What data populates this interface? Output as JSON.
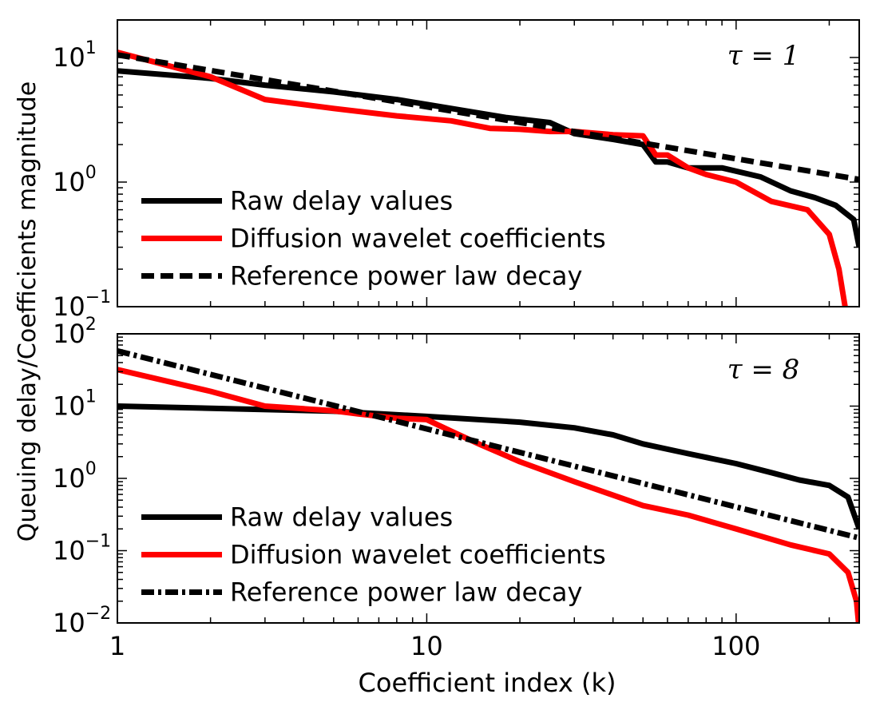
{
  "figure": {
    "ylabel": "Queuing delay/Coefficients magnitude",
    "xlabel": "Coefficient index (k)"
  },
  "chart_data": [
    {
      "type": "line",
      "annotation": "τ = 1",
      "xscale": "log",
      "yscale": "log",
      "xlim": [
        1,
        250
      ],
      "ylim": [
        0.1,
        20
      ],
      "x_ticks": [
        {
          "value": 1,
          "label": "1"
        },
        {
          "value": 10,
          "label": "10"
        },
        {
          "value": 100,
          "label": "100"
        }
      ],
      "y_ticks": [
        {
          "value": 0.1,
          "base": "10",
          "exp": "−1"
        },
        {
          "value": 1,
          "base": "10",
          "exp": "0"
        },
        {
          "value": 10,
          "base": "10",
          "exp": "1"
        }
      ],
      "legend_position": "bottom-left",
      "series": [
        {
          "name": "Raw delay values",
          "color": "#000000",
          "dash": "solid",
          "x": [
            1,
            2,
            3,
            5,
            8,
            12,
            18,
            25,
            30,
            40,
            50,
            55,
            60,
            70,
            90,
            120,
            150,
            180,
            210,
            240,
            250
          ],
          "y": [
            7.8,
            6.8,
            6.0,
            5.3,
            4.6,
            3.9,
            3.3,
            3.0,
            2.45,
            2.2,
            2.0,
            1.45,
            1.45,
            1.3,
            1.3,
            1.1,
            0.85,
            0.75,
            0.65,
            0.5,
            0.3
          ]
        },
        {
          "name": "Diffusion wavelet coefficients",
          "color": "#ff0000",
          "dash": "solid",
          "x": [
            1,
            2,
            3,
            5,
            8,
            12,
            16,
            20,
            25,
            30,
            40,
            50,
            55,
            60,
            70,
            80,
            100,
            130,
            170,
            200,
            215,
            225
          ],
          "y": [
            11,
            7,
            4.6,
            3.9,
            3.4,
            3.1,
            2.7,
            2.65,
            2.55,
            2.55,
            2.4,
            2.35,
            1.65,
            1.65,
            1.3,
            1.15,
            1.0,
            0.7,
            0.6,
            0.38,
            0.2,
            0.1
          ]
        },
        {
          "name": "Reference power law decay",
          "color": "#000000",
          "dash": "dashed",
          "x": [
            1,
            250
          ],
          "y": [
            10.5,
            1.05
          ]
        }
      ]
    },
    {
      "type": "line",
      "annotation": "τ = 8",
      "xscale": "log",
      "yscale": "log",
      "xlim": [
        1,
        250
      ],
      "ylim": [
        0.01,
        100
      ],
      "x_ticks": [
        {
          "value": 1,
          "label": "1"
        },
        {
          "value": 10,
          "label": "10"
        },
        {
          "value": 100,
          "label": "100"
        }
      ],
      "y_ticks": [
        {
          "value": 0.01,
          "base": "10",
          "exp": "−2"
        },
        {
          "value": 0.1,
          "base": "10",
          "exp": "−1"
        },
        {
          "value": 1,
          "base": "10",
          "exp": "0"
        },
        {
          "value": 10,
          "base": "10",
          "exp": "1"
        },
        {
          "value": 100,
          "base": "10",
          "exp": "2"
        }
      ],
      "legend_position": "bottom-left",
      "series": [
        {
          "name": "Raw delay values",
          "color": "#000000",
          "dash": "solid",
          "x": [
            1,
            5,
            10,
            20,
            30,
            40,
            50,
            70,
            100,
            130,
            160,
            200,
            230,
            250
          ],
          "y": [
            10,
            8.5,
            7.2,
            6,
            5,
            4,
            3,
            2.2,
            1.6,
            1.2,
            0.95,
            0.8,
            0.55,
            0.2
          ]
        },
        {
          "name": "Diffusion wavelet coefficients",
          "color": "#ff0000",
          "dash": "solid",
          "x": [
            1,
            2,
            3,
            4,
            5,
            6,
            8,
            10,
            12,
            15,
            20,
            30,
            50,
            70,
            100,
            150,
            200,
            230,
            245,
            250
          ],
          "y": [
            32,
            16,
            10,
            9.2,
            8.6,
            7.8,
            6.8,
            6.5,
            4.5,
            2.9,
            1.7,
            0.9,
            0.42,
            0.31,
            0.2,
            0.12,
            0.09,
            0.05,
            0.02,
            0.008
          ]
        },
        {
          "name": "Reference power law decay",
          "color": "#000000",
          "dash": "dashdot",
          "x": [
            1,
            250
          ],
          "y": [
            58,
            0.15
          ]
        }
      ]
    }
  ]
}
